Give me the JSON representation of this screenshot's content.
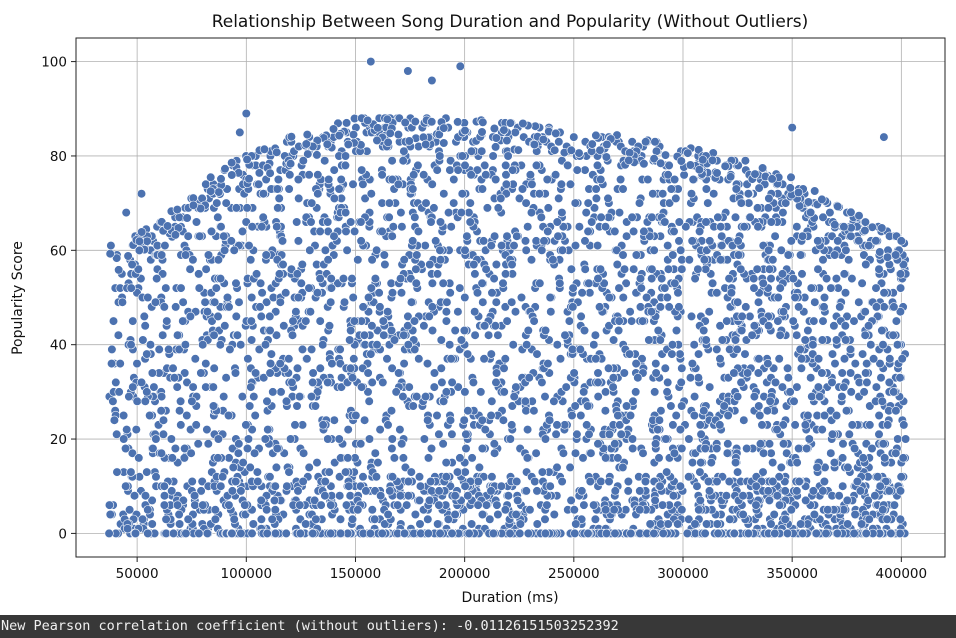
{
  "chart_data": {
    "type": "scatter",
    "title": "Relationship Between Song Duration and Popularity (Without Outliers)",
    "xlabel": "Duration (ms)",
    "ylabel": "Popularity Score",
    "xlim": [
      22000,
      420000
    ],
    "ylim": [
      -5,
      105
    ],
    "xticks": [
      50000,
      100000,
      150000,
      200000,
      250000,
      300000,
      350000,
      400000
    ],
    "yticks": [
      0,
      20,
      40,
      60,
      80,
      100
    ],
    "grid": true,
    "marker_color": "#4c72b0",
    "marker_edge_color": "#ffffff",
    "note": "Dense cloud of thousands of songs; x range ~37000-402000 ms, popularity 0-100. Upper envelope rises from ~60 near 40000 ms to ~88 around 150000-300000 ms, then falls to ~62 near 400000 ms. Row of points at popularity 0 across the range.",
    "highlight_points": [
      {
        "x": 157000,
        "y": 100
      },
      {
        "x": 198000,
        "y": 99
      },
      {
        "x": 174000,
        "y": 98
      },
      {
        "x": 185000,
        "y": 96
      },
      {
        "x": 100000,
        "y": 89
      },
      {
        "x": 97000,
        "y": 85
      },
      {
        "x": 350000,
        "y": 86
      },
      {
        "x": 392000,
        "y": 84
      },
      {
        "x": 52000,
        "y": 72
      },
      {
        "x": 45000,
        "y": 68
      },
      {
        "x": 38000,
        "y": 61
      },
      {
        "x": 400000,
        "y": 62
      }
    ]
  },
  "output": {
    "text": "New Pearson correlation coefficient (without outliers): -0.01126151503252392"
  }
}
